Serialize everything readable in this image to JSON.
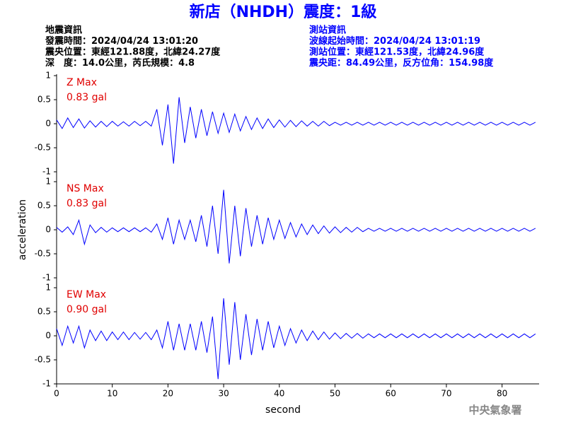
{
  "header": {
    "title": "新店（NHDH）震度：1級",
    "left_lines": [
      "地震資訊",
      "發震時間：2024/04/24 13:01:20",
      "震央位置：東經121.88度，北緯24.27度",
      "深　度：14.0公里，芮氏規模：4.8"
    ],
    "right_lines": [
      "測站資訊",
      "波線起始時間：2024/04/24 13:01:19",
      "測站位置：東經121.53度，北緯24.96度",
      "震央距：84.49公里，反方位角：154.98度"
    ]
  },
  "footer_credit": "中央氣象署",
  "chart_data": [
    {
      "type": "line",
      "color": "#0000ff",
      "annotations": [
        "Z Max",
        "0.83 gal"
      ],
      "xlim": [
        0,
        86.4
      ],
      "ylim": [
        -1,
        1
      ],
      "yticks": [
        -1,
        -0.5,
        0,
        0.5,
        1
      ],
      "x": [
        0,
        1,
        2,
        3,
        4,
        5,
        6,
        7,
        8,
        9,
        10,
        11,
        12,
        13,
        14,
        15,
        16,
        17,
        18,
        19,
        20,
        21,
        22,
        23,
        24,
        25,
        26,
        27,
        28,
        29,
        30,
        31,
        32,
        33,
        34,
        35,
        36,
        37,
        38,
        39,
        40,
        41,
        42,
        43,
        44,
        45,
        46,
        47,
        48,
        49,
        50,
        51,
        52,
        53,
        54,
        55,
        56,
        57,
        58,
        59,
        60,
        61,
        62,
        63,
        64,
        65,
        66,
        67,
        68,
        69,
        70,
        71,
        72,
        73,
        74,
        75,
        76,
        77,
        78,
        79,
        80,
        81,
        82,
        83,
        84,
        85,
        86
      ],
      "values": [
        0.08,
        -0.1,
        0.12,
        -0.08,
        0.1,
        -0.09,
        0.06,
        -0.07,
        0.05,
        -0.06,
        0.05,
        -0.05,
        0.04,
        -0.05,
        0.05,
        -0.04,
        0.05,
        -0.05,
        0.3,
        -0.45,
        0.4,
        -0.83,
        0.55,
        -0.4,
        0.35,
        -0.3,
        0.3,
        -0.25,
        0.25,
        -0.2,
        0.22,
        -0.18,
        0.2,
        -0.15,
        0.15,
        -0.12,
        0.12,
        -0.1,
        0.1,
        -0.08,
        0.08,
        -0.07,
        0.07,
        -0.06,
        0.06,
        -0.05,
        0.05,
        -0.05,
        0.05,
        -0.04,
        0.03,
        -0.03,
        0.03,
        -0.03,
        0.03,
        -0.03,
        0.03,
        -0.03,
        0.03,
        -0.03,
        0.03,
        -0.03,
        0.03,
        -0.03,
        0.03,
        -0.03,
        0.03,
        -0.03,
        0.03,
        -0.03,
        0.03,
        -0.03,
        0.03,
        -0.03,
        0.03,
        -0.03,
        0.03,
        -0.03,
        0.03,
        -0.03,
        0.03,
        -0.03,
        0.03,
        -0.03,
        0.03,
        -0.03,
        0.03
      ]
    },
    {
      "type": "line",
      "color": "#0000ff",
      "annotations": [
        "NS Max",
        "0.83 gal"
      ],
      "y_label": "acceleration",
      "xlim": [
        0,
        86.4
      ],
      "ylim": [
        -1,
        1
      ],
      "yticks": [
        -1,
        -0.5,
        0,
        0.5,
        1
      ],
      "x": [
        0,
        1,
        2,
        3,
        4,
        5,
        6,
        7,
        8,
        9,
        10,
        11,
        12,
        13,
        14,
        15,
        16,
        17,
        18,
        19,
        20,
        21,
        22,
        23,
        24,
        25,
        26,
        27,
        28,
        29,
        30,
        31,
        32,
        33,
        34,
        35,
        36,
        37,
        38,
        39,
        40,
        41,
        42,
        43,
        44,
        45,
        46,
        47,
        48,
        49,
        50,
        51,
        52,
        53,
        54,
        55,
        56,
        57,
        58,
        59,
        60,
        61,
        62,
        63,
        64,
        65,
        66,
        67,
        68,
        69,
        70,
        71,
        72,
        73,
        74,
        75,
        76,
        77,
        78,
        79,
        80,
        81,
        82,
        83,
        84,
        85,
        86
      ],
      "values": [
        0.05,
        -0.05,
        0.06,
        -0.1,
        0.2,
        -0.3,
        0.1,
        -0.06,
        0.05,
        -0.05,
        0.04,
        -0.04,
        0.04,
        -0.04,
        0.04,
        -0.04,
        0.04,
        -0.05,
        0.12,
        -0.2,
        0.25,
        -0.3,
        0.2,
        -0.2,
        0.2,
        -0.25,
        0.3,
        -0.35,
        0.5,
        -0.5,
        0.83,
        -0.7,
        0.5,
        -0.55,
        0.45,
        -0.35,
        0.3,
        -0.3,
        0.25,
        -0.2,
        0.2,
        -0.18,
        0.15,
        -0.15,
        0.12,
        -0.1,
        0.1,
        -0.08,
        0.08,
        -0.07,
        0.06,
        -0.06,
        0.05,
        -0.05,
        0.05,
        -0.04,
        0.03,
        -0.03,
        0.03,
        -0.03,
        0.03,
        -0.03,
        0.03,
        -0.03,
        0.03,
        -0.03,
        0.03,
        -0.03,
        0.03,
        -0.03,
        0.03,
        -0.03,
        0.03,
        -0.03,
        0.03,
        -0.03,
        0.03,
        -0.03,
        0.03,
        -0.03,
        0.03,
        -0.03,
        0.03,
        -0.03,
        0.03,
        -0.03,
        0.03
      ]
    },
    {
      "type": "line",
      "color": "#0000ff",
      "annotations": [
        "EW Max",
        "0.90 gal"
      ],
      "x_label": "second",
      "xlim": [
        0,
        86.4
      ],
      "ylim": [
        -1,
        1
      ],
      "yticks": [
        -1,
        -0.5,
        0,
        0.5,
        1
      ],
      "xticks": [
        0,
        10,
        20,
        30,
        40,
        50,
        60,
        70,
        80
      ],
      "x": [
        0,
        1,
        2,
        3,
        4,
        5,
        6,
        7,
        8,
        9,
        10,
        11,
        12,
        13,
        14,
        15,
        16,
        17,
        18,
        19,
        20,
        21,
        22,
        23,
        24,
        25,
        26,
        27,
        28,
        29,
        30,
        31,
        32,
        33,
        34,
        35,
        36,
        37,
        38,
        39,
        40,
        41,
        42,
        43,
        44,
        45,
        46,
        47,
        48,
        49,
        50,
        51,
        52,
        53,
        54,
        55,
        56,
        57,
        58,
        59,
        60,
        61,
        62,
        63,
        64,
        65,
        66,
        67,
        68,
        69,
        70,
        71,
        72,
        73,
        74,
        75,
        76,
        77,
        78,
        79,
        80,
        81,
        82,
        83,
        84,
        85,
        86
      ],
      "values": [
        0.15,
        -0.2,
        0.2,
        -0.15,
        0.2,
        -0.25,
        0.12,
        -0.1,
        0.1,
        -0.1,
        0.08,
        -0.08,
        0.08,
        -0.08,
        0.07,
        -0.07,
        0.07,
        -0.08,
        0.12,
        -0.25,
        0.3,
        -0.3,
        0.25,
        -0.3,
        0.25,
        -0.3,
        0.3,
        -0.35,
        0.4,
        -0.9,
        0.78,
        -0.6,
        0.7,
        -0.5,
        0.45,
        -0.4,
        0.35,
        -0.3,
        0.3,
        -0.25,
        0.2,
        -0.2,
        0.15,
        -0.15,
        0.12,
        -0.1,
        0.1,
        -0.08,
        0.08,
        -0.07,
        0.06,
        -0.06,
        0.05,
        -0.05,
        0.05,
        -0.05,
        0.04,
        -0.04,
        0.04,
        -0.04,
        0.04,
        -0.04,
        0.04,
        -0.04,
        0.04,
        -0.04,
        0.04,
        -0.04,
        0.04,
        -0.04,
        0.04,
        -0.04,
        0.04,
        -0.04,
        0.04,
        -0.04,
        0.04,
        -0.04,
        0.04,
        -0.04,
        0.04,
        -0.04,
        0.04,
        -0.04,
        0.04,
        -0.04,
        0.04
      ]
    }
  ]
}
